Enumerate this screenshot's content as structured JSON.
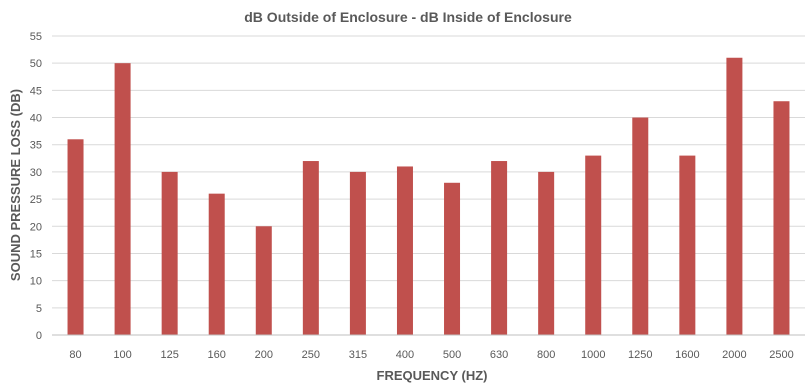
{
  "chart_data": {
    "type": "bar",
    "title": "dB Outside of Enclosure - dB Inside of Enclosure",
    "xlabel": "FREQUENCY (HZ)",
    "ylabel": "SOUND PRESSURE LOSS (DB)",
    "categories": [
      "80",
      "100",
      "125",
      "160",
      "200",
      "250",
      "315",
      "400",
      "500",
      "630",
      "800",
      "1000",
      "1250",
      "1600",
      "2000",
      "2500"
    ],
    "values": [
      36,
      50,
      30,
      26,
      20,
      32,
      30,
      31,
      28,
      32,
      30,
      33,
      40,
      33,
      51,
      43
    ],
    "ylim": [
      0,
      55
    ],
    "yticks": [
      "0",
      "5",
      "10",
      "15",
      "20",
      "25",
      "30",
      "35",
      "40",
      "45",
      "50",
      "55"
    ],
    "grid": true,
    "legend": "none",
    "bar_color": "#c0504d"
  }
}
